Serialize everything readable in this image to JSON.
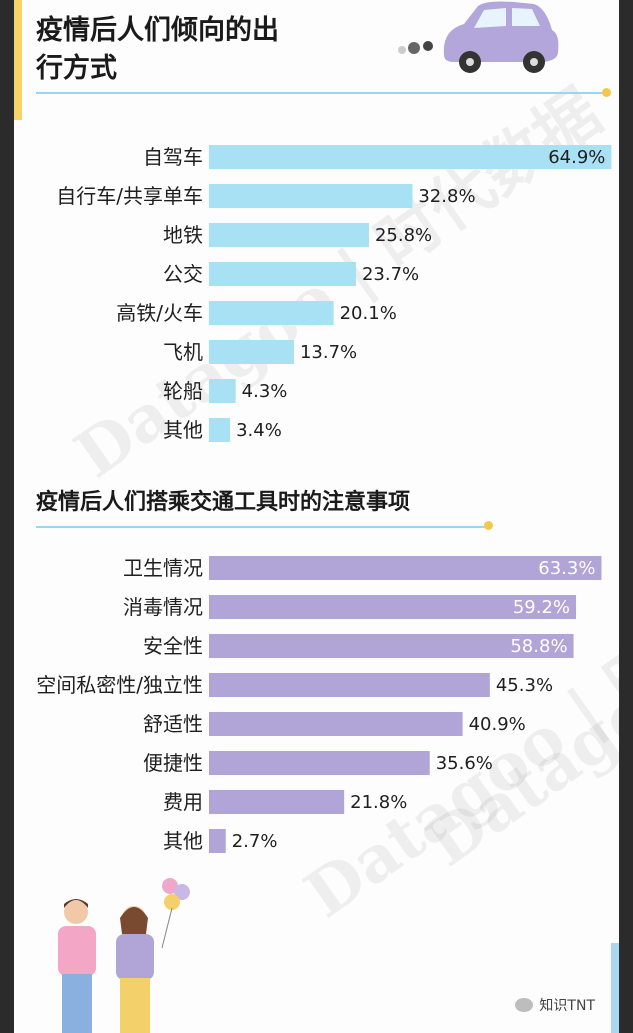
{
  "watermarks": [
    "Datagoo | 时代数据",
    "Datagoo | 时代数据",
    "Datagoo"
  ],
  "footer": {
    "brand": "知识TNT",
    "icon": "wechat-icon"
  },
  "colors": {
    "travel_bar": "#a8e0f4",
    "concern_bar": "#b0a5d6",
    "accent": "#f4c94a"
  },
  "chart_data": [
    {
      "type": "bar",
      "orientation": "horizontal",
      "title": "疫情后人们倾向的出行方式",
      "categories": [
        "自驾车",
        "自行车/共享单车",
        "地铁",
        "公交",
        "高铁/火车",
        "飞机",
        "轮船",
        "其他"
      ],
      "values": [
        64.9,
        32.8,
        25.8,
        23.7,
        20.1,
        13.7,
        4.3,
        3.4
      ],
      "value_labels": [
        "64.9%",
        "32.8%",
        "25.8%",
        "23.7%",
        "20.1%",
        "13.7%",
        "4.3%",
        "3.4%"
      ],
      "unit": "%",
      "color": "#a8e0f4"
    },
    {
      "type": "bar",
      "orientation": "horizontal",
      "title": "疫情后人们搭乘交通工具时的注意事项",
      "categories": [
        "卫生情况",
        "消毒情况",
        "安全性",
        "空间私密性/独立性",
        "舒适性",
        "便捷性",
        "费用",
        "其他"
      ],
      "values": [
        63.3,
        59.2,
        58.8,
        45.3,
        40.9,
        35.6,
        21.8,
        2.7
      ],
      "value_labels": [
        "63.3%",
        "59.2%",
        "58.8%",
        "45.3%",
        "40.9%",
        "35.6%",
        "21.8%",
        "2.7%"
      ],
      "unit": "%",
      "color": "#b0a5d6"
    }
  ]
}
